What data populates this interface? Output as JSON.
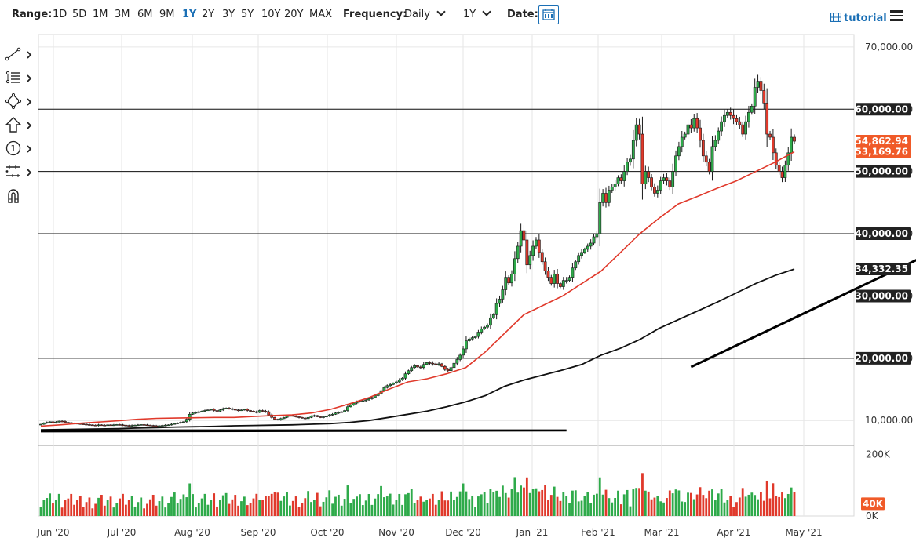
{
  "toolbar": {
    "range_label": "Range:",
    "ranges": [
      "1D",
      "5D",
      "1M",
      "3M",
      "6M",
      "9M",
      "1Y",
      "2Y",
      "3Y",
      "5Y",
      "10Y",
      "20Y",
      "MAX"
    ],
    "active_range": "1Y",
    "frequency_label": "Frequency:",
    "frequency_value": "Daily",
    "period_value": "1Y",
    "date_label": "Date:",
    "tutorial_label": "tutorial"
  },
  "tools": [
    {
      "name": "trendline-tool",
      "icon": "line-icon"
    },
    {
      "name": "fib-tool",
      "icon": "fibonacci-icon"
    },
    {
      "name": "shapes-tool",
      "icon": "shapes-icon"
    },
    {
      "name": "arrow-tool",
      "icon": "arrow-up-icon"
    },
    {
      "name": "annotation-tool",
      "icon": "number-circle-icon"
    },
    {
      "name": "measure-tool",
      "icon": "measure-icon"
    },
    {
      "name": "magnet-tool",
      "icon": "magnet-icon"
    }
  ],
  "chart_data": {
    "type": "candlestick",
    "x_tick_labels": [
      "Jun '20",
      "Jul '20",
      "Aug '20",
      "Sep '20",
      "Oct '20",
      "Nov '20",
      "Dec '20",
      "Jan '21",
      "Feb '21",
      "Mar '21",
      "Apr '21",
      "May '21"
    ],
    "y_tick_labels": [
      "10,000.00",
      "20,000.00",
      "30,000.00",
      "40,000.00",
      "50,000.00",
      "60,000.00",
      "70,000.00"
    ],
    "y_ticks": [
      10000,
      20000,
      30000,
      40000,
      50000,
      60000,
      70000
    ],
    "ylim": [
      6000,
      72000
    ],
    "horizontal_levels": [
      20000,
      30000,
      40000,
      50000,
      60000
    ],
    "grid": true,
    "scale": "linear",
    "price_labels": [
      {
        "value": 54862.94,
        "text": "54,862.94",
        "color": "#f05a28"
      },
      {
        "value": 53169.76,
        "text": "53,169.76",
        "color": "#f05a28"
      },
      {
        "value": 34332.35,
        "text": "34,332.35",
        "color": "#222222"
      },
      {
        "value": 60000,
        "text": "60,000.00",
        "color": "#222222"
      },
      {
        "value": 50000,
        "text": "50,000.00",
        "color": "#222222"
      },
      {
        "value": 40000,
        "text": "40,000.00",
        "color": "#222222"
      },
      {
        "value": 30000,
        "text": "30,000.00",
        "color": "#222222"
      },
      {
        "value": 20000,
        "text": "20,000.00",
        "color": "#222222"
      }
    ],
    "candles_close": [
      9400,
      9600,
      9700,
      9800,
      9650,
      9750,
      9900,
      9850,
      9700,
      9650,
      9600,
      9550,
      9500,
      9450,
      9400,
      9350,
      9300,
      9250,
      9200,
      9300,
      9250,
      9200,
      9300,
      9250,
      9300,
      9350,
      9300,
      9250,
      9200,
      9150,
      9200,
      9250,
      9300,
      9350,
      9300,
      9250,
      9200,
      9150,
      9100,
      9150,
      9200,
      9250,
      9300,
      9400,
      9500,
      9600,
      9700,
      9800,
      10200,
      11000,
      11200,
      11300,
      11400,
      11500,
      11600,
      11700,
      11800,
      11600,
      11500,
      11700,
      11900,
      12000,
      11900,
      11800,
      11700,
      11600,
      11700,
      11800,
      11600,
      11500,
      11400,
      11300,
      11600,
      11500,
      11400,
      10900,
      10500,
      10200,
      10100,
      10300,
      10500,
      10700,
      10800,
      10700,
      10600,
      10500,
      10400,
      10300,
      10500,
      10700,
      10800,
      10600,
      10500,
      10600,
      10700,
      10900,
      11000,
      11200,
      11300,
      11400,
      11600,
      12200,
      12500,
      12800,
      13000,
      13100,
      13200,
      13300,
      13500,
      13700,
      14000,
      14300,
      14800,
      15300,
      15600,
      15800,
      16000,
      16200,
      16500,
      16800,
      17500,
      18000,
      18500,
      18800,
      18600,
      18500,
      19000,
      19300,
      19200,
      19100,
      19000,
      19100,
      18700,
      18200,
      18000,
      18500,
      19200,
      19800,
      20500,
      21500,
      22800,
      23100,
      23300,
      23500,
      24200,
      24700,
      25000,
      25300,
      26500,
      27000,
      28800,
      29500,
      31000,
      33000,
      32100,
      33500,
      36000,
      38000,
      40500,
      39000,
      35000,
      36500,
      38000,
      39000,
      37000,
      35500,
      34000,
      33000,
      32000,
      33500,
      32000,
      31500,
      32500,
      32500,
      33000,
      34500,
      35500,
      36500,
      37000,
      37500,
      38000,
      38500,
      39500,
      40000,
      45000,
      46500,
      45000,
      47000,
      47500,
      48000,
      49000,
      48500,
      50000,
      51500,
      52000,
      55000,
      57500,
      56000,
      48000,
      50000,
      49000,
      47500,
      46500,
      47000,
      48500,
      49000,
      48500,
      47500,
      50000,
      52500,
      54000,
      55500,
      56000,
      57500,
      57000,
      58500,
      57000,
      55000,
      52500,
      51500,
      50000,
      54000,
      55000,
      56500,
      58000,
      59000,
      59500,
      59000,
      58500,
      58000,
      57500,
      56000,
      58000,
      59500,
      60500,
      63500,
      64500,
      63000,
      61000,
      56000,
      55500,
      53000,
      51000,
      50000,
      49000,
      51000,
      53000,
      55500,
      54862.94
    ],
    "ma50_series": [
      9100,
      9300,
      9550,
      9750,
      9950,
      10200,
      10350,
      10400,
      10450,
      10500,
      10500,
      10650,
      10800,
      10900,
      11200,
      11800,
      12700,
      13700,
      15000,
      16200,
      16700,
      17500,
      18500,
      21000,
      24000,
      27000,
      28500,
      30000,
      32000,
      34000,
      37000,
      40000,
      42500,
      44800,
      46000,
      47300,
      48500,
      50000,
      51500,
      53169.76
    ],
    "ma200_series": [
      8500,
      8550,
      8600,
      8650,
      8700,
      8800,
      8850,
      8950,
      9000,
      9050,
      9150,
      9200,
      9250,
      9300,
      9400,
      9500,
      9700,
      10000,
      10500,
      11000,
      11500,
      12200,
      13000,
      14000,
      15500,
      16500,
      17300,
      18100,
      19000,
      20500,
      21600,
      23000,
      24800,
      26200,
      27600,
      29000,
      30500,
      32000,
      33300,
      34332.35
    ],
    "trendlines": [
      {
        "from": [
          0,
          8450
        ],
        "to": [
          173,
          8450
        ]
      },
      {
        "from": [
          0,
          8200
        ],
        "to": [
          173,
          8350
        ]
      },
      {
        "from": [
          214,
          18600
        ],
        "to": [
          366,
          53800
        ]
      }
    ],
    "volume": {
      "y_tick_labels": [
        "200K",
        "0K"
      ],
      "y_ticks": [
        200000,
        0
      ],
      "ymax": 230000,
      "last_label": "40K",
      "last_value": 40000
    }
  }
}
